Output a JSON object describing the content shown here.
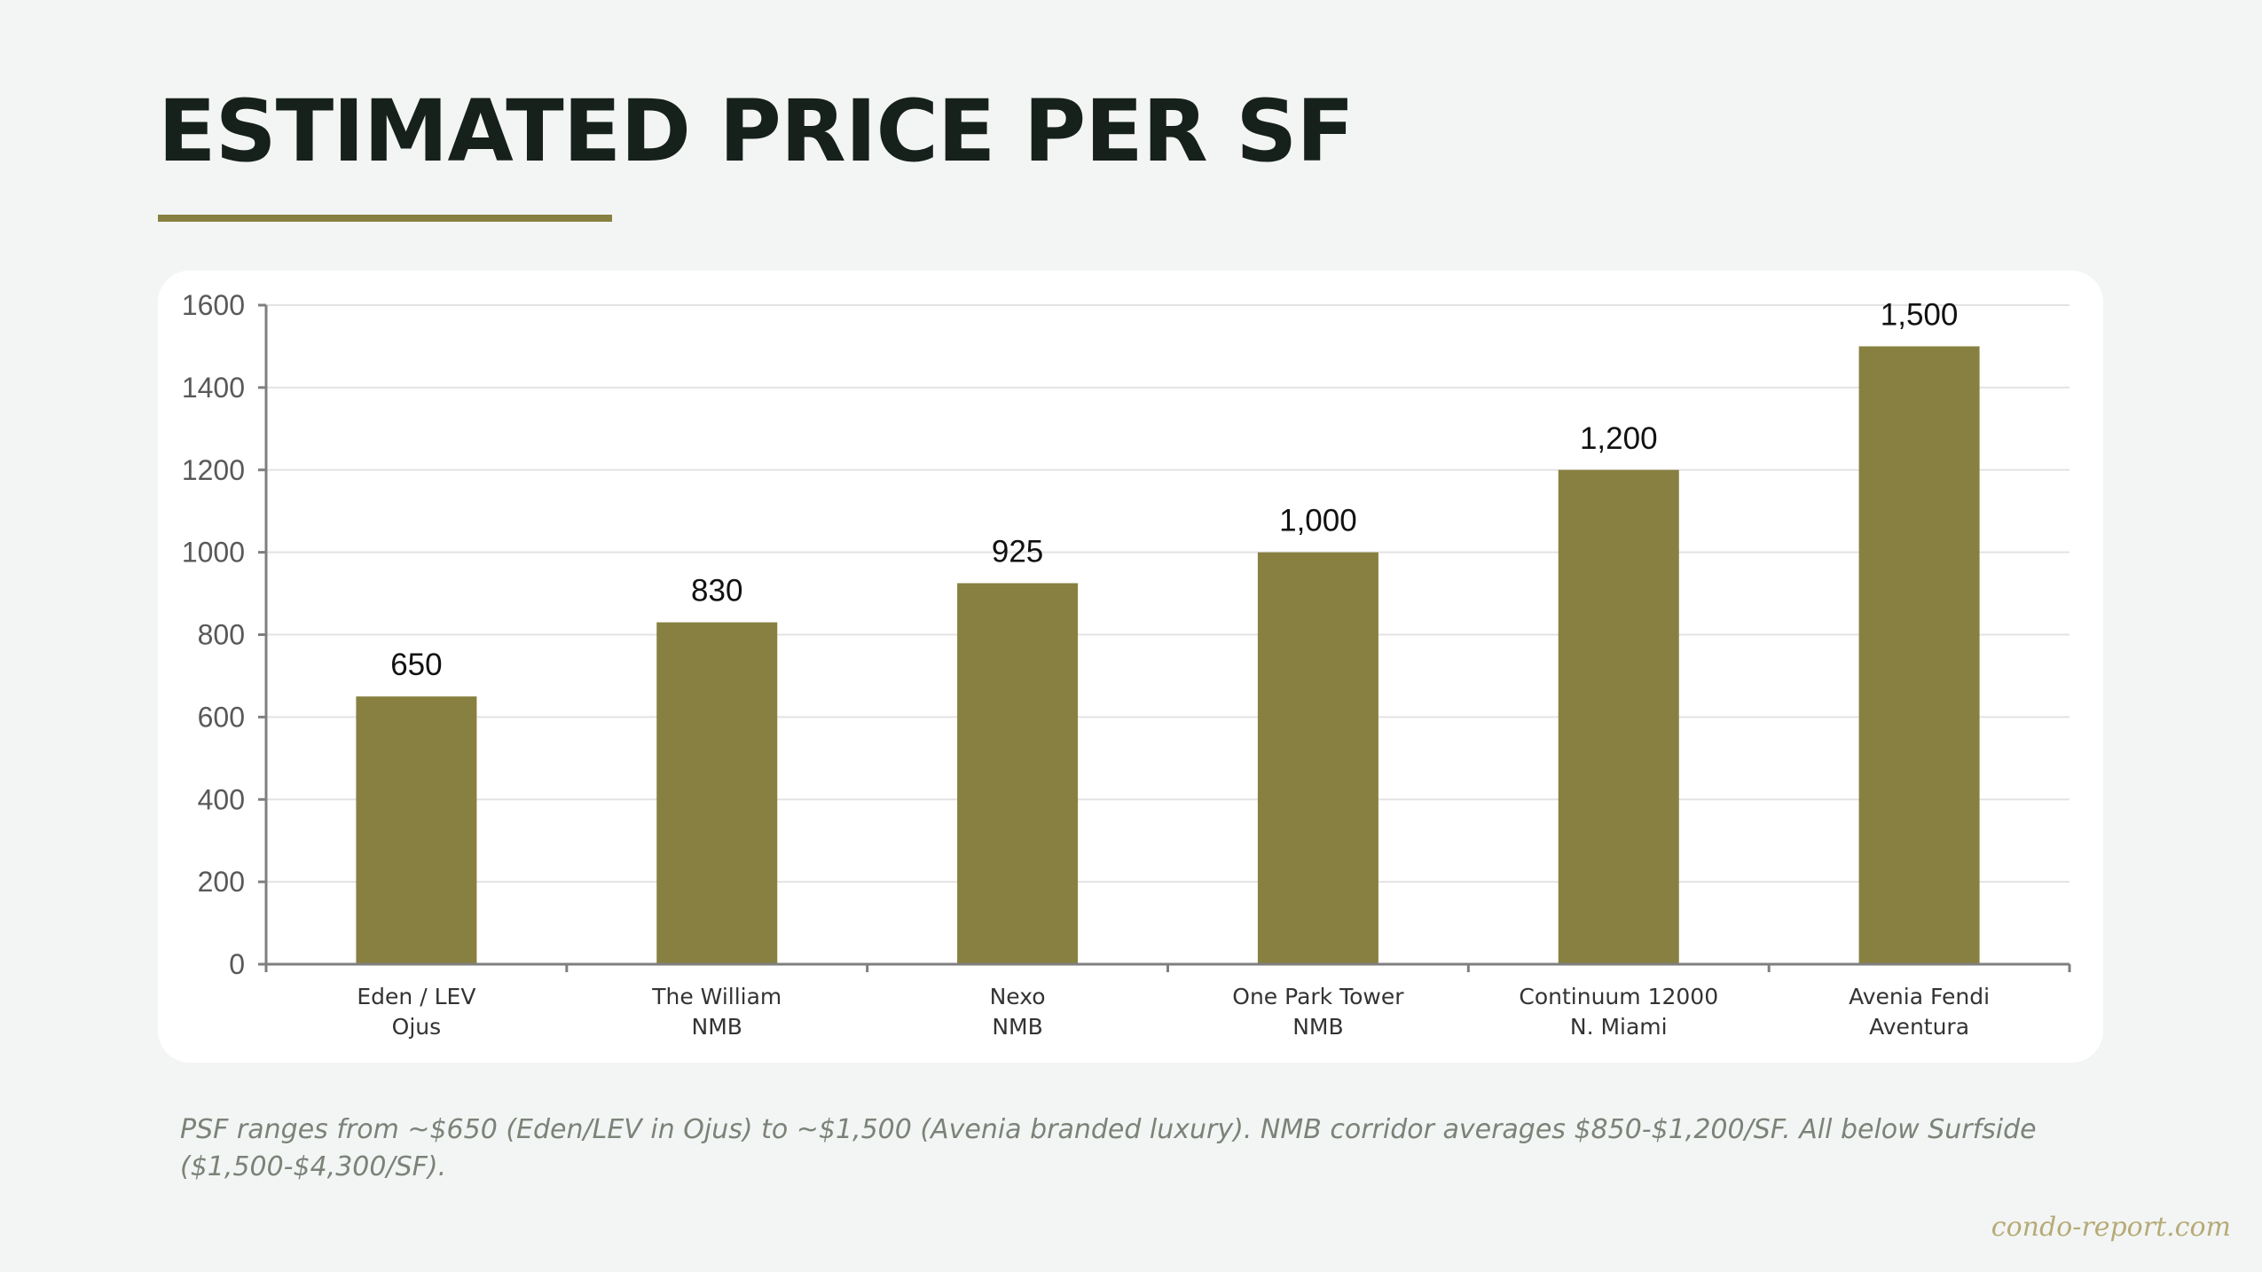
{
  "page": {
    "title": "ESTIMATED PRICE PER SF",
    "footnote": "PSF ranges from ~$650 (Eden/LEV in Ojus) to ~$1,500 (Avenia branded luxury).  NMB corridor averages $850-$1,200/SF.  All below Surfside ($1,500-$4,300/SF).",
    "brand": "condo-report.com"
  },
  "colors": {
    "bar": "#888040",
    "accent": "#888040",
    "title": "#17211b",
    "axis": "#7f7f7f",
    "grid": "#e3e3e3"
  },
  "chart_data": {
    "type": "bar",
    "title": "",
    "xlabel": "",
    "ylabel": "",
    "categories": [
      [
        "Eden / LEV",
        "Ojus"
      ],
      [
        "The William",
        "NMB"
      ],
      [
        "Nexo",
        "NMB"
      ],
      [
        "One Park Tower",
        "NMB"
      ],
      [
        "Continuum 12000",
        "N. Miami"
      ],
      [
        "Avenia Fendi",
        "Aventura"
      ]
    ],
    "values": [
      650,
      830,
      925,
      1000,
      1200,
      1500
    ],
    "data_labels": [
      "650",
      "830",
      "925",
      "1,000",
      "1,200",
      "1,500"
    ],
    "ylim": [
      0,
      1600
    ],
    "yticks": [
      0,
      200,
      400,
      600,
      800,
      1000,
      1200,
      1400,
      1600
    ],
    "grid": true,
    "legend": "none"
  }
}
